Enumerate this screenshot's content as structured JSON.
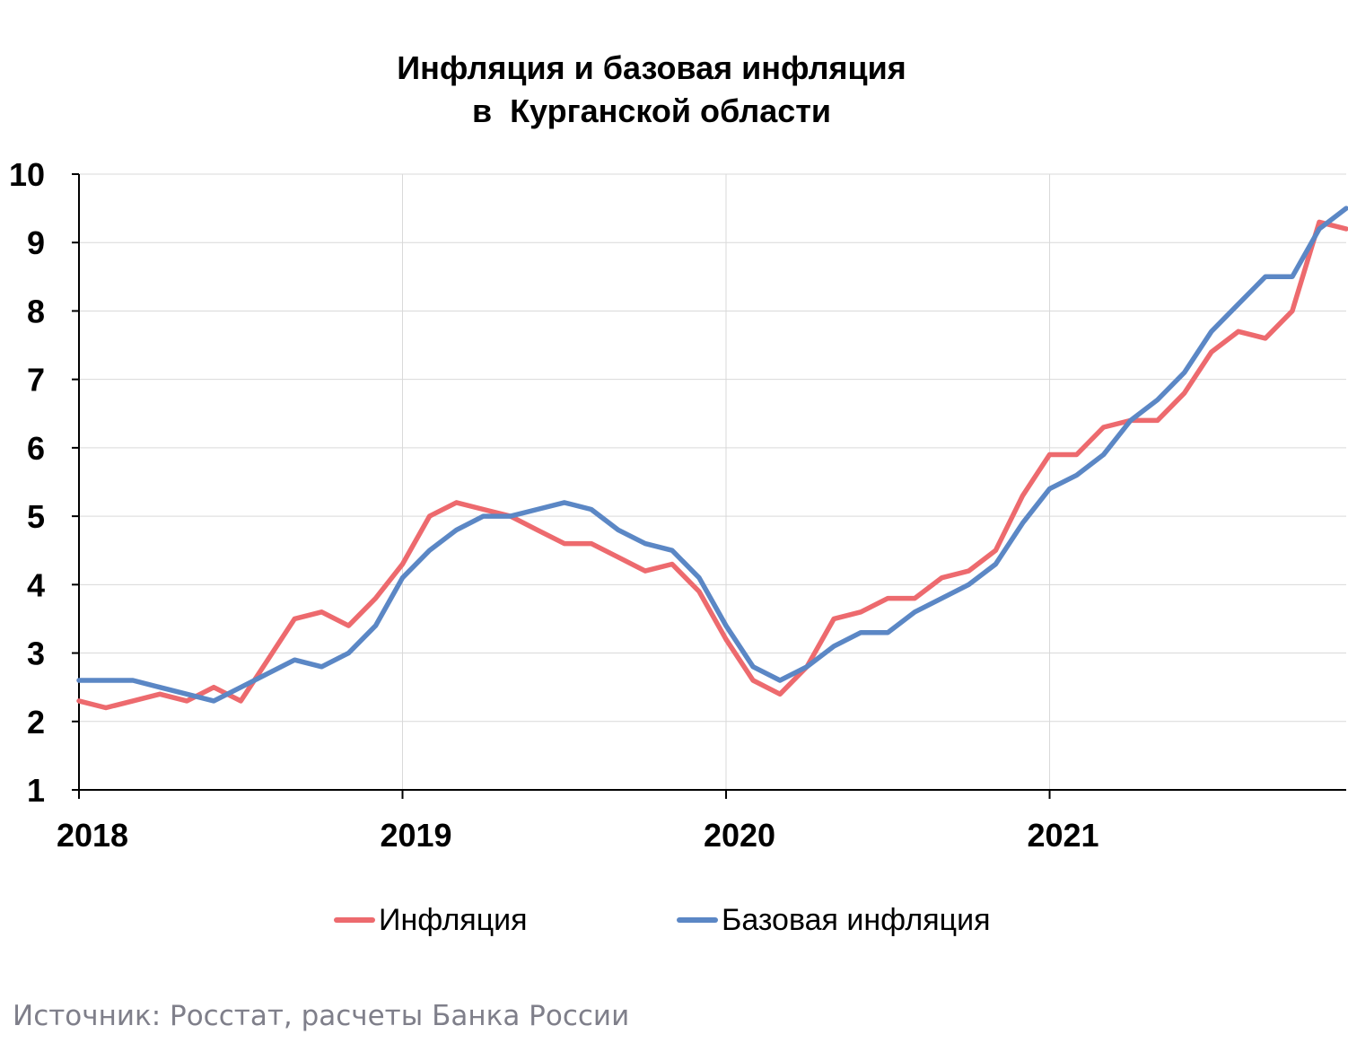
{
  "chart_data": {
    "type": "line",
    "title": "Инфляция и базовая инфляция",
    "subtitle": "в  Курганской области",
    "xlabel": "",
    "ylabel": "",
    "ylim": [
      1,
      10
    ],
    "yticks": [
      "1",
      "2",
      "3",
      "4",
      "5",
      "6",
      "7",
      "8",
      "9",
      "10"
    ],
    "xticks": [
      "2018",
      "2019",
      "2020",
      "2021"
    ],
    "xrange_months": [
      0,
      47
    ],
    "grid": true,
    "legend": "bottom",
    "colors": {
      "inflation": "#ed6a6e",
      "core": "#5b87c5",
      "grid": "#d9d9d9",
      "axis": "#000000"
    },
    "series": [
      {
        "name": "Инфляция",
        "color": "#ed6a6e",
        "values": [
          2.3,
          2.2,
          2.3,
          2.4,
          2.3,
          2.5,
          2.3,
          2.9,
          3.5,
          3.6,
          3.4,
          3.8,
          4.3,
          5.0,
          5.2,
          5.1,
          5.0,
          4.8,
          4.6,
          4.6,
          4.4,
          4.2,
          4.3,
          3.9,
          3.2,
          2.6,
          2.4,
          2.8,
          3.5,
          3.6,
          3.8,
          3.8,
          4.1,
          4.2,
          4.5,
          5.3,
          5.9,
          5.9,
          6.3,
          6.4,
          6.4,
          6.8,
          7.4,
          7.7,
          7.6,
          8.0,
          9.3,
          9.2
        ]
      },
      {
        "name": "Базовая инфляция",
        "color": "#5b87c5",
        "values": [
          2.6,
          2.6,
          2.6,
          2.5,
          2.4,
          2.3,
          2.5,
          2.7,
          2.9,
          2.8,
          3.0,
          3.4,
          4.1,
          4.5,
          4.8,
          5.0,
          5.0,
          5.1,
          5.2,
          5.1,
          4.8,
          4.6,
          4.5,
          4.1,
          3.4,
          2.8,
          2.6,
          2.8,
          3.1,
          3.3,
          3.3,
          3.6,
          3.8,
          4.0,
          4.3,
          4.9,
          5.4,
          5.6,
          5.9,
          6.4,
          6.7,
          7.1,
          7.7,
          8.1,
          8.5,
          8.5,
          9.2,
          9.5
        ]
      }
    ]
  },
  "source": "Источник: Росстат, расчеты Банка России"
}
